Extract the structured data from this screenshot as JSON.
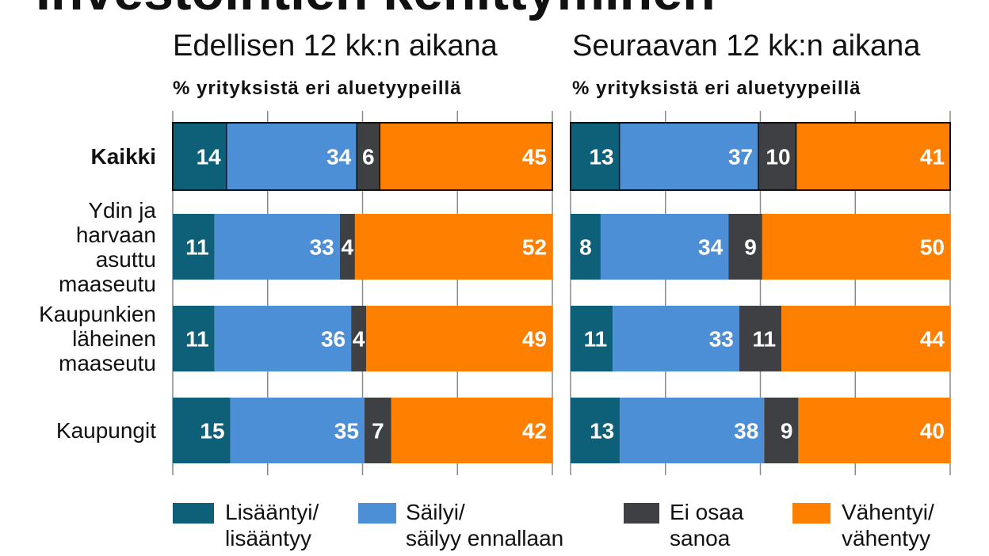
{
  "title": "Investointien kehittyminen",
  "chart_data": [
    {
      "type": "bar",
      "orientation": "horizontal",
      "stacked": true,
      "title": "Edellisen 12 kk:n aikana",
      "subtitle": "% yrityksistä eri aluetyypeillä",
      "categories": [
        "Kaikki",
        "Ydin ja harvaan asuttu maaseutu",
        "Kaupunkien läheinen maaseutu",
        "Kaupungit"
      ],
      "series": [
        {
          "name": "Lisääntyi/\nlisääntyy",
          "color": "#0e5f78",
          "values": [
            14,
            11,
            11,
            15
          ]
        },
        {
          "name": "Säilyi/\nsäilyy ennallaan",
          "color": "#4d8fd6",
          "values": [
            34,
            33,
            36,
            35
          ]
        },
        {
          "name": "Ei osaa\nsanoa",
          "color": "#3f4043",
          "values": [
            6,
            4,
            4,
            7
          ]
        },
        {
          "name": "Vähentyi/\nvähentyy",
          "color": "#ff7f00",
          "values": [
            45,
            52,
            49,
            42
          ]
        }
      ],
      "xlim": [
        0,
        100
      ],
      "grid": true,
      "legend_position": "bottom"
    },
    {
      "type": "bar",
      "orientation": "horizontal",
      "stacked": true,
      "title": "Seuraavan 12 kk:n aikana",
      "subtitle": "% yrityksistä eri aluetyypeillä",
      "categories": [
        "Kaikki",
        "Ydin ja harvaan asuttu maaseutu",
        "Kaupunkien läheinen maaseutu",
        "Kaupungit"
      ],
      "series": [
        {
          "name": "Lisääntyi/\nlisääntyy",
          "color": "#0e5f78",
          "values": [
            13,
            8,
            11,
            13
          ]
        },
        {
          "name": "Säilyi/\nsäilyy ennallaan",
          "color": "#4d8fd6",
          "values": [
            37,
            34,
            33,
            38
          ]
        },
        {
          "name": "Ei osaa\nsanoa",
          "color": "#3f4043",
          "values": [
            10,
            9,
            11,
            9
          ]
        },
        {
          "name": "Vähentyi/\nvähentyy",
          "color": "#ff7f00",
          "values": [
            41,
            50,
            44,
            40
          ]
        }
      ],
      "xlim": [
        0,
        100
      ],
      "grid": true,
      "legend_position": "bottom"
    }
  ]
}
